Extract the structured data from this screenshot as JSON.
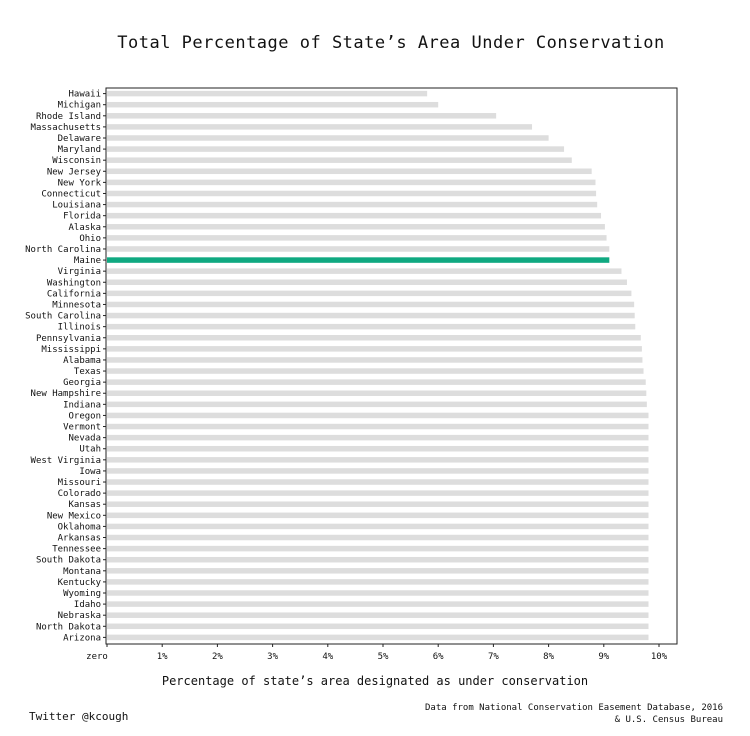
{
  "chart_data": {
    "type": "bar",
    "orientation": "horizontal",
    "title": "Total Percentage of State’s Area Under Conservation",
    "xlabel": "Percentage of state’s area designated as under conservation",
    "ylabel": "",
    "xlim": [
      0,
      10.3
    ],
    "xticks": [
      {
        "value": 0,
        "label": "zero"
      },
      {
        "value": 1,
        "label": "1%"
      },
      {
        "value": 2,
        "label": "2%"
      },
      {
        "value": 3,
        "label": "3%"
      },
      {
        "value": 4,
        "label": "4%"
      },
      {
        "value": 5,
        "label": "5%"
      },
      {
        "value": 6,
        "label": "6%"
      },
      {
        "value": 7,
        "label": "7%"
      },
      {
        "value": 8,
        "label": "8%"
      },
      {
        "value": 9,
        "label": "9%"
      },
      {
        "value": 10,
        "label": "10%"
      }
    ],
    "grid": false,
    "highlight": "Maine",
    "colors": {
      "bar": "#dddddd",
      "highlight": "#10a981",
      "text": "#111111",
      "frame": "#222222"
    },
    "categories": [
      "Hawaii",
      "Michigan",
      "Rhode Island",
      "Massachusetts",
      "Delaware",
      "Maryland",
      "Wisconsin",
      "New Jersey",
      "New York",
      "Connecticut",
      "Louisiana",
      "Florida",
      "Alaska",
      "Ohio",
      "North Carolina",
      "Maine",
      "Virginia",
      "Washington",
      "California",
      "Minnesota",
      "South Carolina",
      "Illinois",
      "Pennsylvania",
      "Mississippi",
      "Alabama",
      "Texas",
      "Georgia",
      "New Hampshire",
      "Indiana",
      "Oregon",
      "Vermont",
      "Nevada",
      "Utah",
      "West Virginia",
      "Iowa",
      "Missouri",
      "Colorado",
      "Kansas",
      "New Mexico",
      "Oklahoma",
      "Arkansas",
      "Tennessee",
      "South Dakota",
      "Montana",
      "Kentucky",
      "Wyoming",
      "Idaho",
      "Nebraska",
      "North Dakota",
      "Arizona"
    ],
    "values": [
      5.8,
      6.0,
      7.05,
      7.7,
      8.0,
      8.28,
      8.42,
      8.78,
      8.85,
      8.86,
      8.88,
      8.95,
      9.02,
      9.05,
      9.1,
      9.1,
      9.32,
      9.42,
      9.5,
      9.55,
      9.56,
      9.57,
      9.67,
      9.69,
      9.7,
      9.72,
      9.76,
      9.77,
      9.78,
      9.81,
      9.81,
      9.81,
      9.81,
      9.81,
      9.81,
      9.81,
      9.81,
      9.81,
      9.81,
      9.81,
      9.81,
      9.81,
      9.81,
      9.81,
      9.81,
      9.81,
      9.81,
      9.81,
      9.81,
      9.81
    ]
  },
  "footer": {
    "credit": "Twitter @kcough",
    "source_line1": "Data from National Conservation Easement Database, 2016",
    "source_line2": "& U.S. Census Bureau"
  }
}
